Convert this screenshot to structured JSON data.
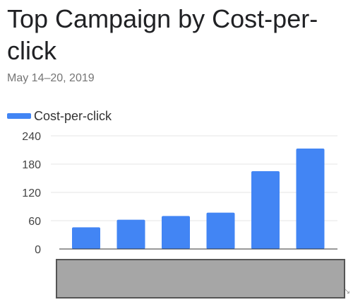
{
  "header": {
    "title": "Top Campaign by Cost-per-click",
    "date_range": "May 14–20, 2019"
  },
  "legend": {
    "label": "Cost-per-click",
    "color": "#4285f4"
  },
  "overlay": {
    "color": "#a6a6a6"
  },
  "chart_data": {
    "type": "bar",
    "title": "Top Campaign by Cost-per-click",
    "subtitle": "May 14–20, 2019",
    "categories": [
      "",
      "",
      "",
      "",
      "",
      ""
    ],
    "series": [
      {
        "name": "Cost-per-click",
        "values": [
          46,
          62,
          70,
          77,
          165,
          213
        ],
        "color": "#4285f4"
      }
    ],
    "xlabel": "",
    "ylabel": "",
    "ylim": [
      0,
      240
    ],
    "yticks": [
      0,
      60,
      120,
      180,
      240
    ],
    "grid": true,
    "legend_position": "top-left"
  }
}
